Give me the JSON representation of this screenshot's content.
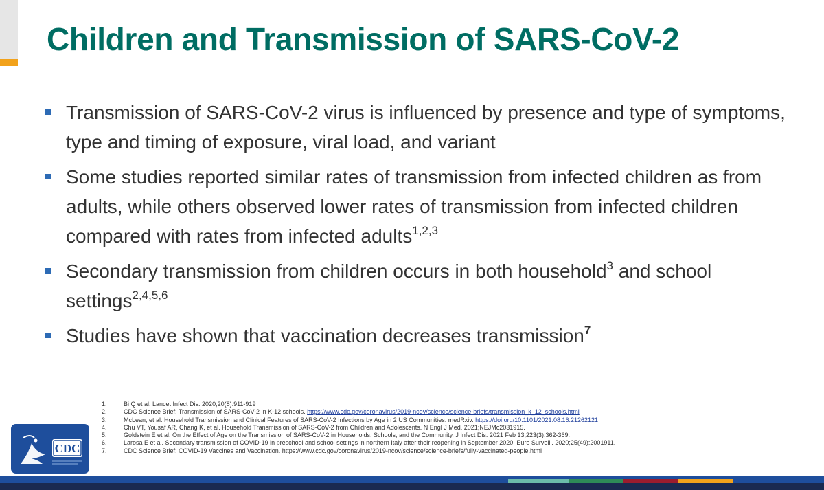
{
  "slide": {
    "title": "Children and Transmission of SARS-CoV-2"
  },
  "bullets": [
    {
      "text": "Transmission of SARS-CoV-2 virus is influenced by presence and type of symptoms, type and timing of exposure, viral load, and variant",
      "sup": ""
    },
    {
      "text": "Some studies reported similar rates of transmission from infected children as from adults, while others observed lower rates of transmission from infected children compared with rates from infected adults",
      "sup": "1,2,3"
    },
    {
      "text_before": "Secondary transmission from children occurs in both household",
      "sup_mid": "3",
      "text_after": " and school settings",
      "sup": "2,4,5,6"
    },
    {
      "text": "Studies have shown that vaccination decreases transmission",
      "sup": "7"
    }
  ],
  "references": [
    {
      "num": "1.",
      "text": "Bi Q et al. Lancet Infect Dis. 2020;20(8):911-919",
      "link": ""
    },
    {
      "num": "2.",
      "text": "CDC Science Brief: Transmission of SARS-CoV-2 in K-12 schools. ",
      "link": "https://www.cdc.gov/coronavirus/2019-ncov/science/science-briefs/transmission_k_12_schools.html"
    },
    {
      "num": "3.",
      "text": "McLean, et al. Household Transmission and Clinical Features of SARS-CoV-2 Infections by Age in 2 US Communities. medRxiv. ",
      "link": "https://doi.org/10.1101/2021.08.16.21262121"
    },
    {
      "num": "4.",
      "text": "Chu VT, Yousaf AR, Chang K, et al. Household Transmission of SARS-CoV-2 from Children and Adolescents. N Engl J Med. 2021;NEJMc2031915.",
      "link": ""
    },
    {
      "num": "5.",
      "text": "Goldstein E et al. On the Effect of Age on the Transmission of SARS-CoV-2 in Households, Schools, and the Community. J Infect Dis. 2021 Feb 13;223(3):362-369.",
      "link": ""
    },
    {
      "num": "6.",
      "text": "Larosa E et al. Secondary transmission of COVID-19 in preschool and school settings in northern Italy after their reopening in September 2020. Euro Surveill. 2020;25(49):2001911.",
      "link": ""
    },
    {
      "num": "7.",
      "text": "CDC Science Brief: COVID-19 Vaccines and Vaccination. https://www.cdc.gov/coronavirus/2019-ncov/science/science-briefs/fully-vaccinated-people.html",
      "link": ""
    }
  ],
  "logo": {
    "text": "CDC",
    "icon": "hhs-eagle-icon"
  },
  "colors": {
    "title": "#006d63",
    "bullet_marker": "#2d6bb5",
    "accent_orange": "#f2a21b",
    "logo_bg": "#1e4e9c",
    "bottom_bar": "#1a2a50",
    "stripe_segments": [
      "#1e4e9c",
      "#6cbcaa",
      "#2e8b57",
      "#9b1c2e",
      "#f2a21b",
      "#1e4e9c"
    ]
  }
}
